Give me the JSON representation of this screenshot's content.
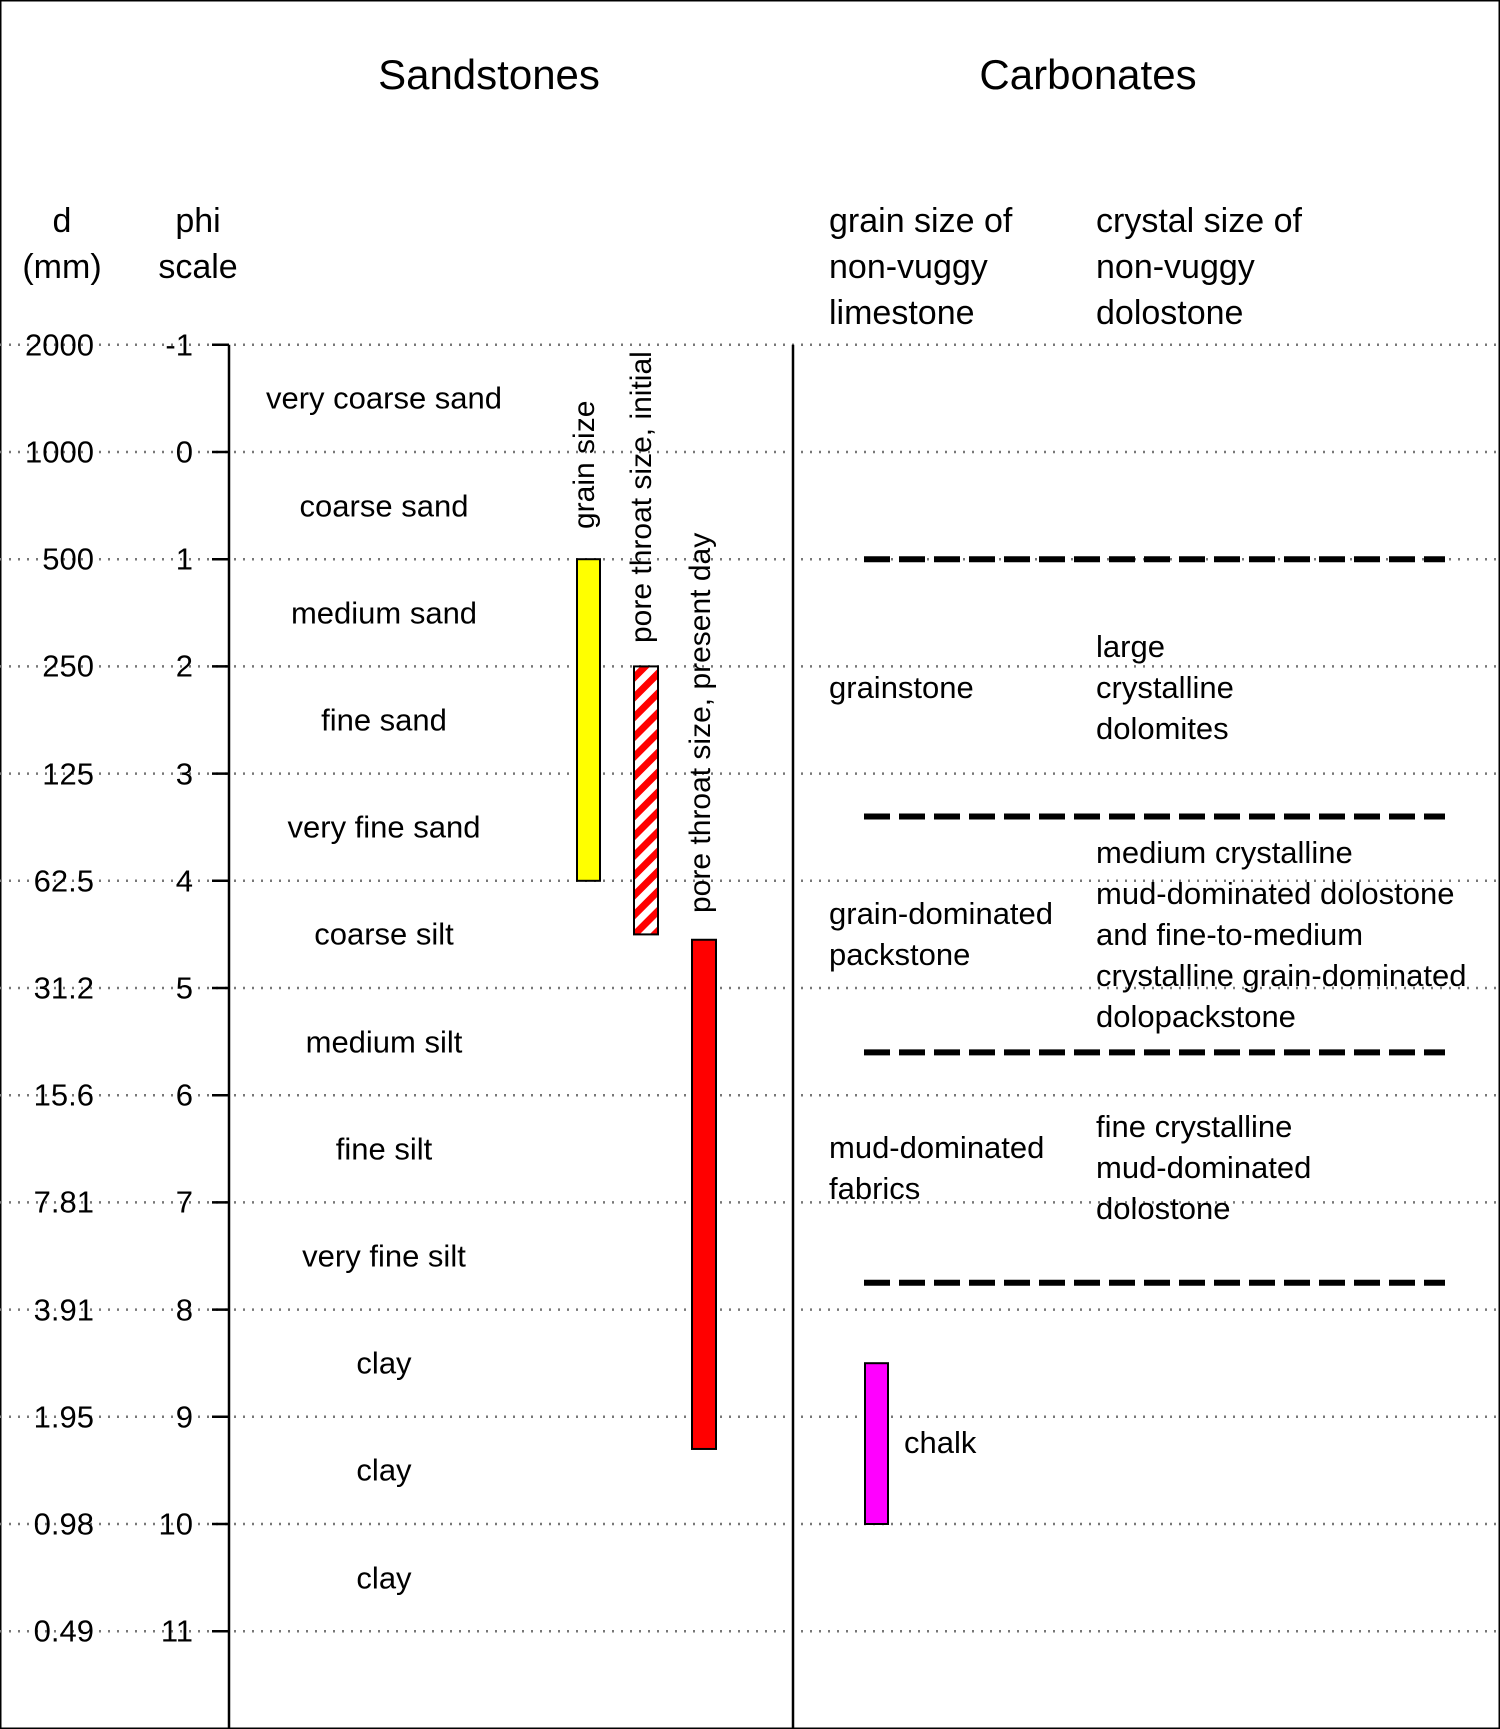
{
  "headers": {
    "sandstones": "Sandstones",
    "carbonates": "Carbonates"
  },
  "columns": {
    "d": [
      "d",
      "(mm)"
    ],
    "phi": [
      "phi",
      "scale"
    ],
    "limestone": [
      "grain size of",
      "non-vuggy",
      "limestone"
    ],
    "dolostone": [
      "crystal size of",
      "non-vuggy",
      "dolostone"
    ]
  },
  "scale": [
    {
      "phi": "-1",
      "d": "2000"
    },
    {
      "phi": "0",
      "d": "1000"
    },
    {
      "phi": "1",
      "d": "500"
    },
    {
      "phi": "2",
      "d": "250"
    },
    {
      "phi": "3",
      "d": "125"
    },
    {
      "phi": "4",
      "d": "62.5"
    },
    {
      "phi": "5",
      "d": "31.2"
    },
    {
      "phi": "6",
      "d": "15.6"
    },
    {
      "phi": "7",
      "d": "7.81"
    },
    {
      "phi": "8",
      "d": "3.91"
    },
    {
      "phi": "9",
      "d": "1.95"
    },
    {
      "phi": "10",
      "d": "0.98"
    },
    {
      "phi": "11",
      "d": "0.49"
    }
  ],
  "grain_classes": [
    "very coarse sand",
    "coarse sand",
    "medium sand",
    "fine sand",
    "very fine sand",
    "coarse silt",
    "medium silt",
    "fine silt",
    "very fine silt",
    "clay",
    "clay",
    "clay"
  ],
  "bars": [
    {
      "label": "grain size",
      "phi_range": [
        1,
        4
      ],
      "color": "#ffff00",
      "pattern": "solid"
    },
    {
      "label": "pore throat size, initial",
      "phi_range": [
        2,
        4.5
      ],
      "color": "#ff0000",
      "pattern": "hatched"
    },
    {
      "label": "pore throat size, present day",
      "phi_range": [
        4.55,
        9.3
      ],
      "color": "#ff0000",
      "pattern": "solid"
    }
  ],
  "carbonate_boundaries_phi": [
    1,
    3.4,
    5.6,
    7.75
  ],
  "carbonate_classes": [
    {
      "limestone": [
        "grainstone"
      ],
      "dolostone": [
        "large",
        "crystalline",
        "dolomites"
      ]
    },
    {
      "limestone": [
        "grain-dominated",
        "packstone"
      ],
      "dolostone": [
        "medium crystalline",
        "mud-dominated dolostone",
        "and fine-to-medium",
        "crystalline grain-dominated",
        "dolopackstone"
      ]
    },
    {
      "limestone": [
        "mud-dominated",
        "fabrics"
      ],
      "dolostone": [
        "fine crystalline",
        "mud-dominated",
        "dolostone"
      ]
    }
  ],
  "chalk": {
    "label": "chalk",
    "phi_range": [
      8.5,
      10
    ],
    "color": "#ff00ff"
  }
}
